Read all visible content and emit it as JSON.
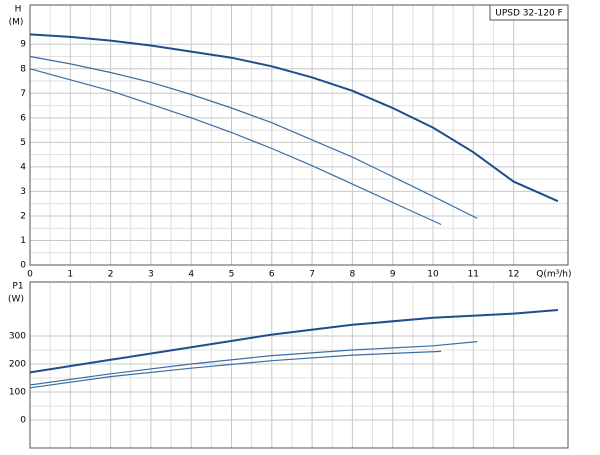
{
  "chart_data": [
    {
      "type": "line",
      "title": "UPSD 32-120 F",
      "y_label": "H",
      "y_unit": "(M)",
      "x_label": "Q(m³/h)",
      "xlim": [
        0,
        13.35
      ],
      "xticks": [
        0,
        1,
        2,
        3,
        4,
        5,
        6,
        7,
        8,
        9,
        10,
        11,
        12
      ],
      "ylim": [
        0,
        10.6
      ],
      "yticks": [
        0,
        1,
        2,
        3,
        4,
        5,
        6,
        7,
        8,
        9
      ],
      "grid": true,
      "series": [
        {
          "color": "#1f4e8c",
          "x": [
            0,
            1,
            2,
            3,
            4,
            5,
            6,
            7,
            8,
            9,
            10,
            11,
            12,
            13.1
          ],
          "values": [
            9.4,
            9.3,
            9.15,
            8.95,
            8.7,
            8.45,
            8.1,
            7.65,
            7.1,
            6.4,
            5.6,
            4.6,
            3.4,
            2.6
          ]
        },
        {
          "color": "#3a6ea5",
          "x": [
            0,
            1,
            2,
            3,
            4,
            5,
            6,
            7,
            8,
            9,
            10,
            11.1
          ],
          "values": [
            8.5,
            8.2,
            7.85,
            7.45,
            6.95,
            6.4,
            5.8,
            5.1,
            4.4,
            3.6,
            2.8,
            1.9
          ]
        },
        {
          "color": "#3a6ea5",
          "x": [
            0,
            1,
            2,
            3,
            4,
            5,
            6,
            7,
            8,
            9,
            10.2
          ],
          "values": [
            8.0,
            7.55,
            7.1,
            6.55,
            6.0,
            5.4,
            4.75,
            4.05,
            3.3,
            2.55,
            1.65
          ]
        }
      ]
    },
    {
      "type": "line",
      "y_label": "P1",
      "y_unit": "(W)",
      "xlim": [
        0,
        13.35
      ],
      "xticks": [
        0,
        1,
        2,
        3,
        4,
        5,
        6,
        7,
        8,
        9,
        10,
        11,
        12
      ],
      "ylim": [
        -100,
        493
      ],
      "yticks": [
        0,
        100,
        200,
        300
      ],
      "grid": true,
      "series": [
        {
          "color": "#1f4e8c",
          "x": [
            0,
            2,
            4,
            6,
            8,
            10,
            12,
            13.1
          ],
          "values": [
            170,
            215,
            260,
            305,
            340,
            365,
            380,
            393
          ]
        },
        {
          "color": "#3a6ea5",
          "x": [
            0,
            2,
            4,
            6,
            8,
            10,
            11.1
          ],
          "values": [
            125,
            165,
            200,
            230,
            250,
            265,
            280
          ]
        },
        {
          "color": "#3a6ea5",
          "x": [
            0,
            2,
            4,
            6,
            8,
            10.2
          ],
          "values": [
            115,
            155,
            185,
            212,
            232,
            245
          ]
        }
      ]
    }
  ]
}
